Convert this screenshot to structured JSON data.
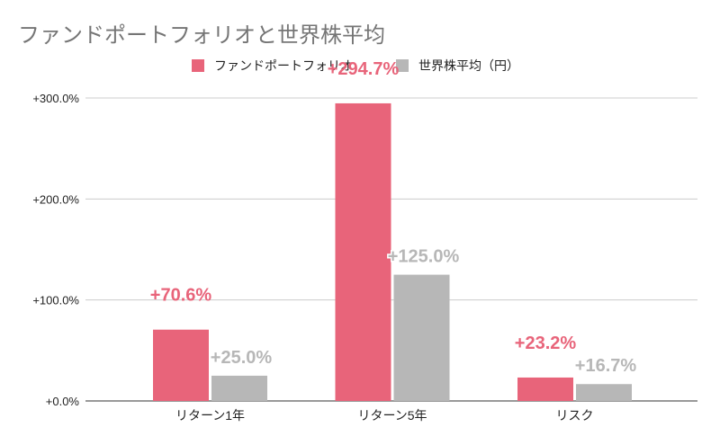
{
  "chart_data": {
    "type": "bar",
    "title": "ファンドポートフォリオと世界株平均",
    "categories": [
      "リターン1年",
      "リターン5年",
      "リスク"
    ],
    "series": [
      {
        "name": "ファンドポートフォリオ",
        "values": [
          70.6,
          294.7,
          23.2
        ],
        "labels": [
          "+70.6%",
          "+294.7%",
          "+23.2%"
        ],
        "color": "#e8647a"
      },
      {
        "name": "世界株平均（円）",
        "values": [
          25.0,
          125.0,
          16.7
        ],
        "labels": [
          "+25.0%",
          "+125.0%",
          "+16.7%"
        ],
        "color": "#b7b7b7"
      }
    ],
    "yticks": [
      0,
      100,
      200,
      300
    ],
    "ytick_labels": [
      "+0.0%",
      "+100.0%",
      "+200.0%",
      "+300.0%"
    ],
    "ylim": [
      0,
      300
    ],
    "xlabel": "",
    "ylabel": "",
    "grid": true,
    "legend_position": "top-center"
  }
}
